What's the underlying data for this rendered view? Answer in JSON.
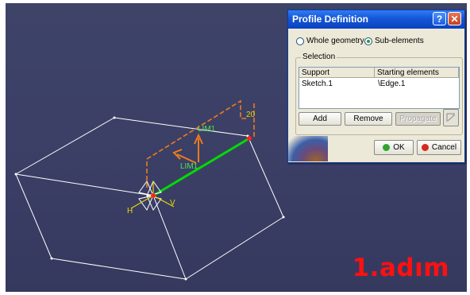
{
  "overlay": {
    "step_label": "1.adım"
  },
  "sketch": {
    "dimension_labels": [
      "LIM1",
      "LIM1",
      "20"
    ],
    "axis_labels": [
      "H",
      "V"
    ]
  },
  "dialog": {
    "title": "Profile Definition",
    "help_glyph": "?",
    "close_glyph": "✕",
    "mode_options": [
      {
        "label": "Whole geometry",
        "selected": false
      },
      {
        "label": "Sub-elements",
        "selected": true
      }
    ],
    "selection": {
      "group_label": "Selection",
      "columns": [
        "Support",
        "Starting elements"
      ],
      "rows": [
        {
          "support": "Sketch.1",
          "starting": "\\Edge.1"
        }
      ]
    },
    "buttons": {
      "add": "Add",
      "remove": "Remove",
      "propagate": "Propagate",
      "ok": "OK",
      "cancel": "Cancel"
    },
    "colors": {
      "ok_dot": "#2fa52f",
      "cancel_dot": "#d42a1a"
    }
  }
}
